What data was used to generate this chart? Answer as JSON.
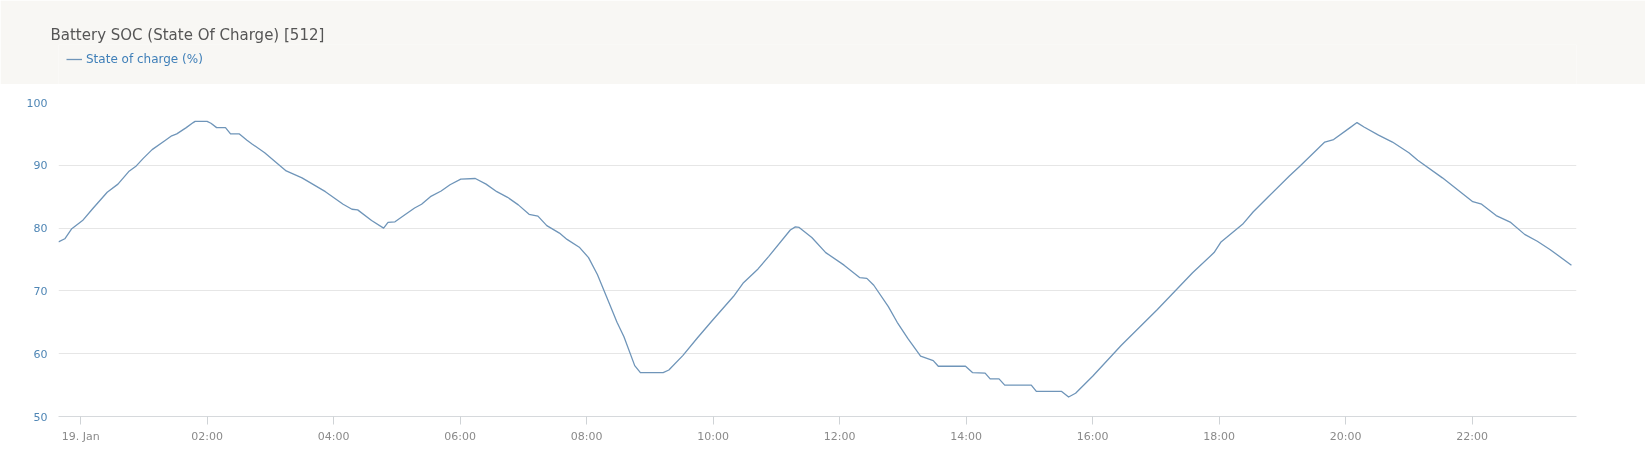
{
  "chart_data": {
    "type": "line",
    "title": "Battery SOC (State Of Charge) [512]",
    "x": [
      -0.35,
      -0.25,
      -0.14,
      0.03,
      0.2,
      0.42,
      0.59,
      0.76,
      0.88,
      0.99,
      1.13,
      1.33,
      1.44,
      1.52,
      1.67,
      1.78,
      1.81,
      2.0,
      2.06,
      2.15,
      2.29,
      2.37,
      2.51,
      2.63,
      2.71,
      2.91,
      3.11,
      3.25,
      3.5,
      3.87,
      4.15,
      4.29,
      4.38,
      4.6,
      4.79,
      4.86,
      4.97,
      5.11,
      5.28,
      5.39,
      5.53,
      5.7,
      5.84,
      6.01,
      6.24,
      6.41,
      6.58,
      6.75,
      6.92,
      7.09,
      7.23,
      7.37,
      7.57,
      7.69,
      7.89,
      8.03,
      8.17,
      8.31,
      8.48,
      8.59,
      8.76,
      8.85,
      9.21,
      9.3,
      9.52,
      9.75,
      9.98,
      10.32,
      10.48,
      10.71,
      10.88,
      11.22,
      11.3,
      11.36,
      11.56,
      11.78,
      12.07,
      12.32,
      12.43,
      12.54,
      12.77,
      12.91,
      13.08,
      13.28,
      13.48,
      13.56,
      13.99,
      14.1,
      14.3,
      14.38,
      14.52,
      14.61,
      15.03,
      15.11,
      15.51,
      15.62,
      15.73,
      16.0,
      16.45,
      17.02,
      17.58,
      17.92,
      18.03,
      18.37,
      18.54,
      18.77,
      19.11,
      19.28,
      19.67,
      19.81,
      20.07,
      20.18,
      20.29,
      20.52,
      20.74,
      21.0,
      21.14,
      21.53,
      22.01,
      22.15,
      22.38,
      22.61,
      22.83,
      23.03,
      23.23,
      23.57
    ],
    "series": [
      {
        "name": "State of charge (%)",
        "color": "#6f95b9",
        "values": [
          77.8,
          78.3,
          79.9,
          81.2,
          83.2,
          85.7,
          87.0,
          89.0,
          89.9,
          91.1,
          92.5,
          93.9,
          94.7,
          95.0,
          96.0,
          96.8,
          97.0,
          97.0,
          96.7,
          96.0,
          96.0,
          95.0,
          95.0,
          94.0,
          93.4,
          92.0,
          90.3,
          89.1,
          88.0,
          85.8,
          83.8,
          83.0,
          82.9,
          81.2,
          80.0,
          80.9,
          81.0,
          82.0,
          83.2,
          83.8,
          85.0,
          85.9,
          86.9,
          87.8,
          87.9,
          87.0,
          85.8,
          84.9,
          83.7,
          82.2,
          81.9,
          80.4,
          79.2,
          78.2,
          76.9,
          75.3,
          72.6,
          69.2,
          65.0,
          62.7,
          58.1,
          57.0,
          57.0,
          57.4,
          59.7,
          62.5,
          65.2,
          69.1,
          71.3,
          73.5,
          75.5,
          79.7,
          80.2,
          80.1,
          78.5,
          76.1,
          74.1,
          72.1,
          72.0,
          70.9,
          67.5,
          65.0,
          62.4,
          59.6,
          58.9,
          58.0,
          58.0,
          57.0,
          56.9,
          56.0,
          56.0,
          55.0,
          55.0,
          54.0,
          54.0,
          53.1,
          53.7,
          56.4,
          61.3,
          67.0,
          72.9,
          76.1,
          77.8,
          80.6,
          82.6,
          84.9,
          88.3,
          89.9,
          93.7,
          94.1,
          96.0,
          96.8,
          96.1,
          94.8,
          93.7,
          92.0,
          90.8,
          88.0,
          84.2,
          83.8,
          82.0,
          80.9,
          79.0,
          77.9,
          76.6,
          74.1
        ]
      }
    ],
    "xlim": [
      -0.35,
      23.65
    ],
    "xticks": [
      {
        "value": 0,
        "label": "19. Jan"
      },
      {
        "value": 2,
        "label": "02:00"
      },
      {
        "value": 4,
        "label": "04:00"
      },
      {
        "value": 6,
        "label": "06:00"
      },
      {
        "value": 8,
        "label": "08:00"
      },
      {
        "value": 10,
        "label": "10:00"
      },
      {
        "value": 12,
        "label": "12:00"
      },
      {
        "value": 14,
        "label": "14:00"
      },
      {
        "value": 16,
        "label": "16:00"
      },
      {
        "value": 18,
        "label": "18:00"
      },
      {
        "value": 20,
        "label": "20:00"
      },
      {
        "value": 22,
        "label": "22:00"
      }
    ],
    "ylim": [
      50,
      100
    ],
    "yticks": [
      50,
      60,
      70,
      80,
      90,
      100
    ],
    "grid": "y",
    "legend": "top left"
  }
}
